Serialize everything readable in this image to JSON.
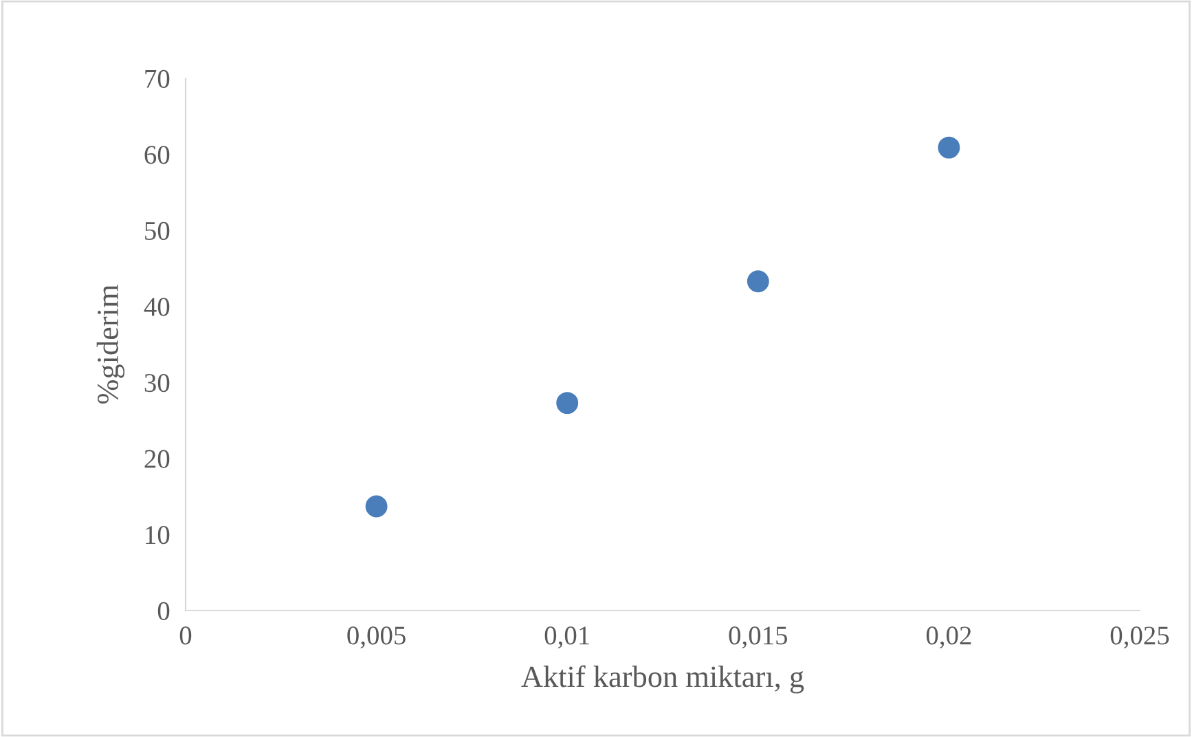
{
  "chart_data": {
    "type": "scatter",
    "xlabel": "Aktif karbon miktarı, g",
    "ylabel": "%giderim",
    "x": [
      0.005,
      0.01,
      0.015,
      0.02
    ],
    "series": [
      {
        "color": "#4a7ebb",
        "values": [
          13.7,
          27.3,
          43.3,
          60.9
        ]
      }
    ],
    "marker": "circle",
    "grid": false,
    "xlim": [
      0,
      0.025
    ],
    "xticks": [
      0,
      {
        "value": 0.005,
        "label": "0,005"
      },
      {
        "value": 0.01,
        "label": "0,01"
      },
      {
        "value": 0.015,
        "label": "0,015"
      },
      {
        "value": 0.02,
        "label": "0,02"
      },
      {
        "value": 0.025,
        "label": "0,025"
      }
    ],
    "ylim": [
      0,
      70
    ],
    "yticks": [
      0,
      10,
      20,
      30,
      40,
      50,
      60,
      70
    ]
  }
}
